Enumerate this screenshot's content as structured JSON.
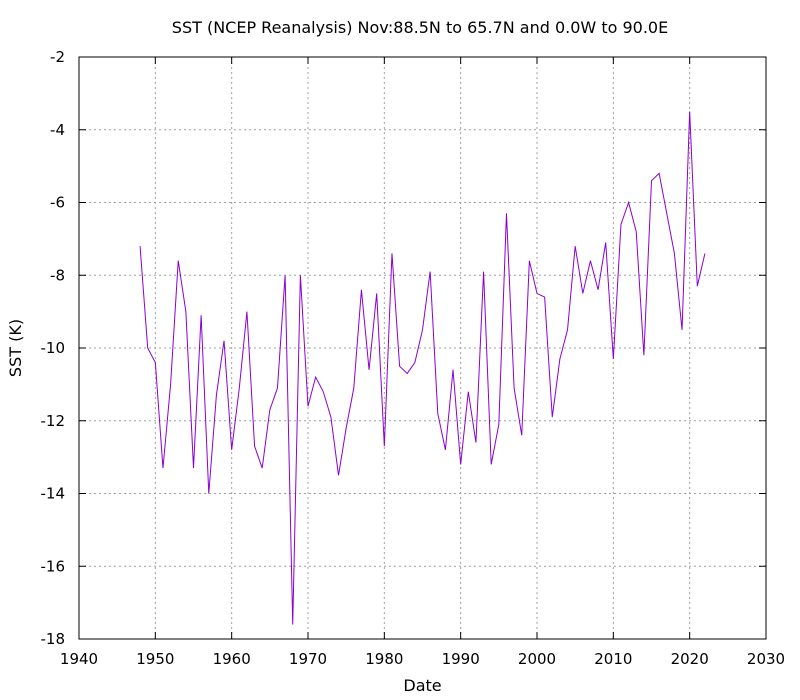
{
  "chart_data": {
    "type": "line",
    "title": "SST (NCEP Reanalysis) Nov:88.5N to 65.7N and 0.0W to 90.0E",
    "xlabel": "Date",
    "ylabel": "SST (K)",
    "xlim": [
      1940,
      2030
    ],
    "ylim": [
      -18,
      -2
    ],
    "xticks": [
      1940,
      1950,
      1960,
      1970,
      1980,
      1990,
      2000,
      2010,
      2020,
      2030
    ],
    "yticks": [
      -18,
      -16,
      -14,
      -12,
      -10,
      -8,
      -6,
      -4,
      -2
    ],
    "grid": true,
    "series": [
      {
        "color": "#8b00d3",
        "x": [
          1948,
          1949,
          1950,
          1951,
          1952,
          1953,
          1954,
          1955,
          1956,
          1957,
          1958,
          1959,
          1960,
          1961,
          1962,
          1963,
          1964,
          1965,
          1966,
          1967,
          1968,
          1969,
          1970,
          1971,
          1972,
          1973,
          1974,
          1975,
          1976,
          1977,
          1978,
          1979,
          1980,
          1981,
          1982,
          1983,
          1984,
          1985,
          1986,
          1987,
          1988,
          1989,
          1990,
          1991,
          1992,
          1993,
          1994,
          1995,
          1996,
          1997,
          1998,
          1999,
          2000,
          2001,
          2002,
          2003,
          2004,
          2005,
          2006,
          2007,
          2008,
          2009,
          2010,
          2011,
          2012,
          2013,
          2014,
          2015,
          2016,
          2017,
          2018,
          2019,
          2020,
          2021,
          2022
        ],
        "y": [
          -7.2,
          -10.0,
          -10.4,
          -13.3,
          -11.0,
          -7.6,
          -9.0,
          -13.3,
          -9.1,
          -14.0,
          -11.3,
          -9.8,
          -12.8,
          -11.1,
          -9.0,
          -12.7,
          -13.3,
          -11.7,
          -11.1,
          -8.0,
          -17.6,
          -8.0,
          -11.6,
          -10.8,
          -11.2,
          -11.9,
          -13.5,
          -12.2,
          -11.1,
          -8.4,
          -10.6,
          -8.5,
          -12.7,
          -7.4,
          -10.5,
          -10.7,
          -10.4,
          -9.5,
          -7.9,
          -11.8,
          -12.8,
          -10.6,
          -13.2,
          -11.2,
          -12.6,
          -7.9,
          -13.2,
          -12.1,
          -6.3,
          -11.1,
          -12.4,
          -7.6,
          -8.5,
          -8.6,
          -11.9,
          -10.3,
          -9.5,
          -7.2,
          -8.5,
          -7.6,
          -8.4,
          -7.1,
          -10.3,
          -6.6,
          -6.0,
          -6.8,
          -10.2,
          -5.4,
          -5.2,
          -6.3,
          -7.4,
          -9.5,
          -3.5,
          -8.3,
          -7.4
        ]
      }
    ]
  }
}
